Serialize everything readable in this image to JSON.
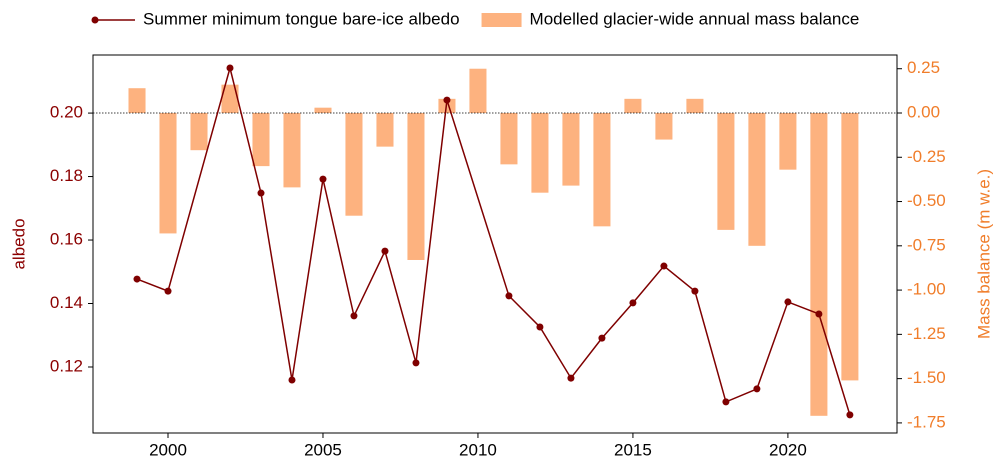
{
  "chart_data": {
    "type": "combo",
    "ylabel": "albedo",
    "y2label": "Mass balance (m w.e.)",
    "xlim": [
      1997.58,
      2023.52
    ],
    "xticks": [
      2000,
      2005,
      2010,
      2015,
      2020
    ],
    "ylim": [
      0.0992,
      0.2183
    ],
    "yticks": [
      0.12,
      0.14,
      0.16,
      0.18,
      {
        "value": 0.2,
        "label": "0.20"
      }
    ],
    "y2lim": [
      -1.807,
      0.3275
    ],
    "y2ticks": [
      0.25,
      {
        "value": 0,
        "label": "0.00"
      },
      -0.25,
      {
        "value": -0.5,
        "label": "-0.50"
      },
      -0.75,
      {
        "value": -1,
        "label": "-1.00"
      },
      -1.25,
      {
        "value": -1.5,
        "label": "-1.50"
      },
      -1.75
    ],
    "y2_zero_line": true,
    "left_axis_color": "#8b0000",
    "right_axis_color": "#f07d2a",
    "series": [
      {
        "name": "Summer minimum tongue bare-ice albedo",
        "type": "line",
        "color": "#7f0000",
        "axis": "y",
        "x": [
          1999,
          2000,
          2002,
          2003,
          2004,
          2005,
          2006,
          2007,
          2008,
          2009,
          2011,
          2012,
          2013,
          2014,
          2015,
          2016,
          2017,
          2018,
          2019,
          2020,
          2021,
          2022
        ],
        "values": [
          0.1477,
          0.1439,
          0.2142,
          0.1748,
          0.1159,
          0.1792,
          0.1361,
          0.1565,
          0.1213,
          0.2041,
          0.1424,
          0.1326,
          0.1165,
          0.1291,
          0.1402,
          0.1518,
          0.1439,
          0.109,
          0.1131,
          0.1405,
          0.1367,
          0.1049
        ]
      },
      {
        "name": "Modelled glacier-wide annual mass balance",
        "type": "bar",
        "color": "#fdb27f",
        "axis": "y2",
        "x": [
          1999,
          2000,
          2001,
          2002,
          2003,
          2004,
          2005,
          2006,
          2007,
          2008,
          2009,
          2010,
          2011,
          2012,
          2013,
          2014,
          2015,
          2016,
          2017,
          2018,
          2019,
          2020,
          2021,
          2022
        ],
        "values": [
          0.14,
          -0.68,
          -0.21,
          0.16,
          -0.3,
          -0.42,
          0.03,
          -0.58,
          -0.19,
          -0.83,
          0.08,
          0.25,
          -0.29,
          -0.45,
          -0.41,
          -0.64,
          0.08,
          -0.15,
          0.08,
          -0.66,
          -0.75,
          -0.32,
          -1.71,
          -1.51
        ]
      }
    ]
  }
}
